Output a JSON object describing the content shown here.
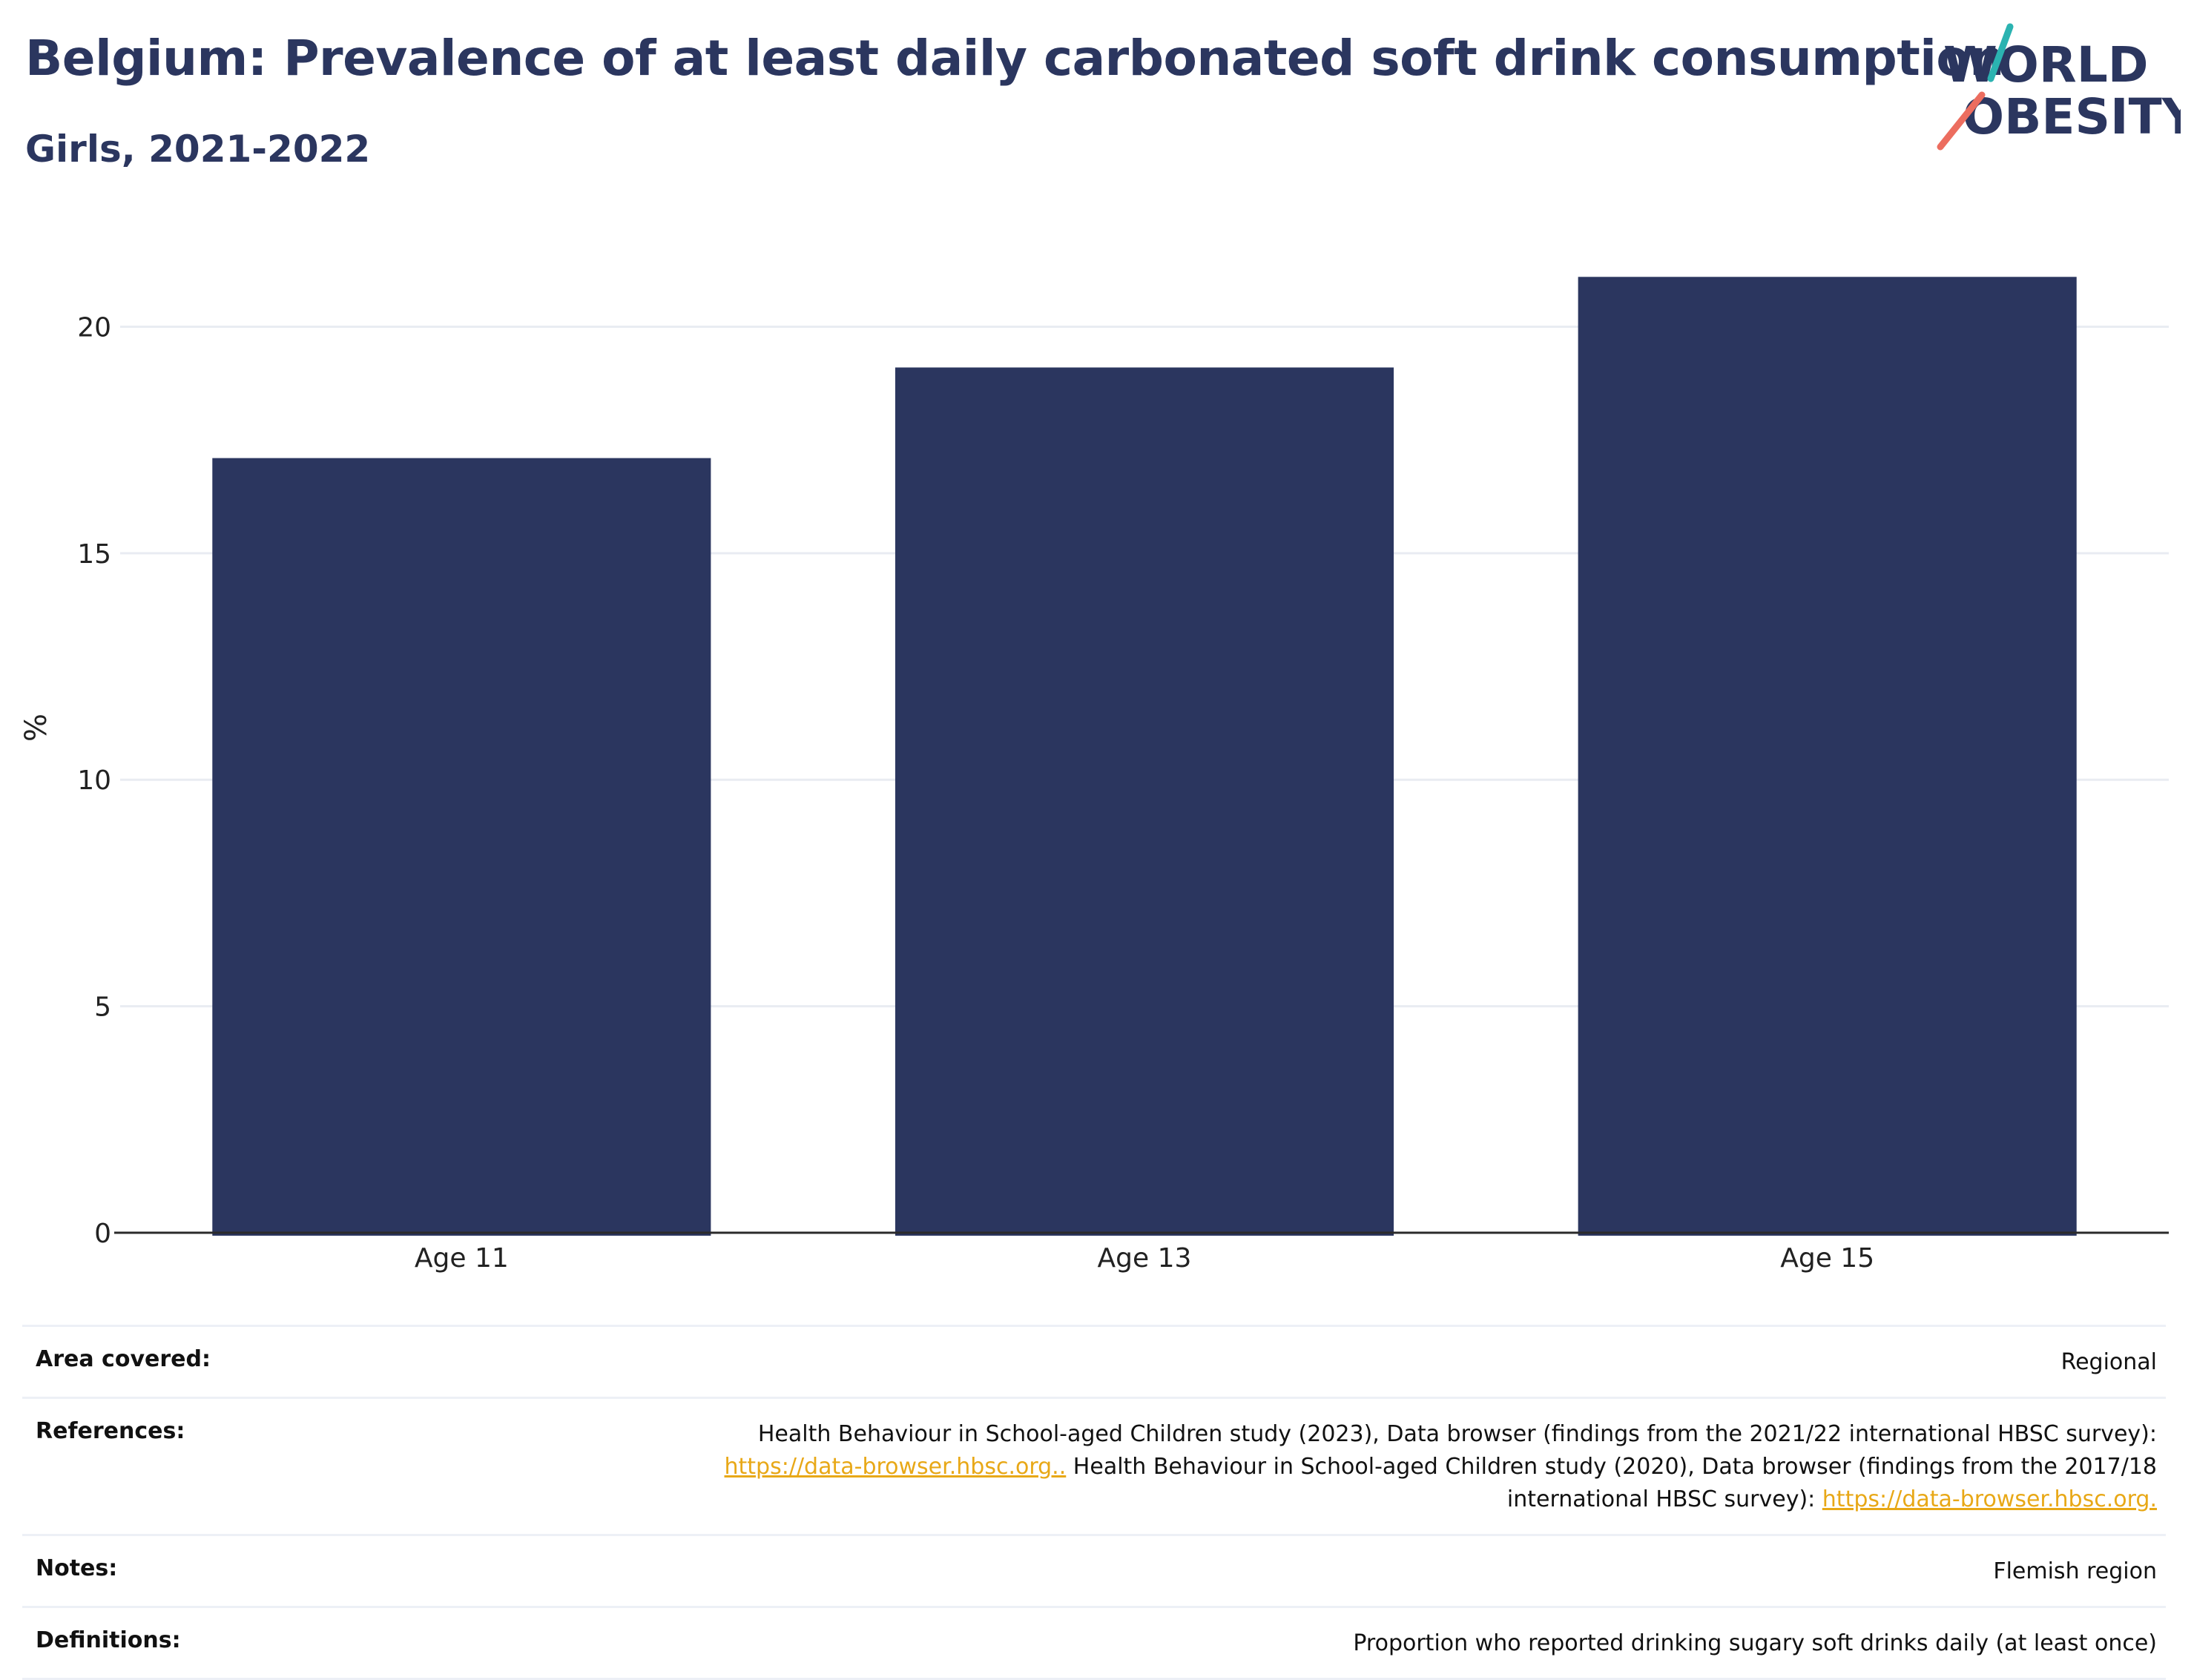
{
  "header": {
    "title": "Belgium: Prevalence of at least daily carbonated soft drink consumption",
    "subtitle": "Girls, 2021-2022",
    "logo_line1": "WORLD",
    "logo_line2": "OBESITY"
  },
  "colors": {
    "bar": "#2b365f",
    "title": "#2b365f",
    "link": "#e8a817",
    "logo_teal": "#2bb3b1",
    "logo_coral": "#ec6d5f"
  },
  "chart_data": {
    "type": "bar",
    "categories": [
      "Age 11",
      "Age 13",
      "Age 15"
    ],
    "values": [
      17.1,
      19.1,
      21.1
    ],
    "ylabel": "%",
    "xlabel": "",
    "ylim": [
      0,
      22.3
    ],
    "yticks": [
      0,
      5,
      10,
      15,
      20
    ],
    "grid": true
  },
  "info": {
    "area": {
      "label": "Area covered:",
      "value": "Regional"
    },
    "references": {
      "label": "References:",
      "text1": "Health Behaviour in School-aged Children study (2023), Data browser (findings from the 2021/22 international HBSC survey):",
      "link1": "https://data-browser.hbsc.org..",
      "text2": " Health Behaviour in School-aged Children study (2020), Data browser (findings from the 2017/18",
      "text3": "international HBSC survey): ",
      "link2": "https://data-browser.hbsc.org."
    },
    "notes": {
      "label": "Notes:",
      "value": "Flemish region"
    },
    "definitions": {
      "label": "Definitions:",
      "value": "Proportion who reported drinking sugary soft drinks daily (at least once)"
    }
  }
}
